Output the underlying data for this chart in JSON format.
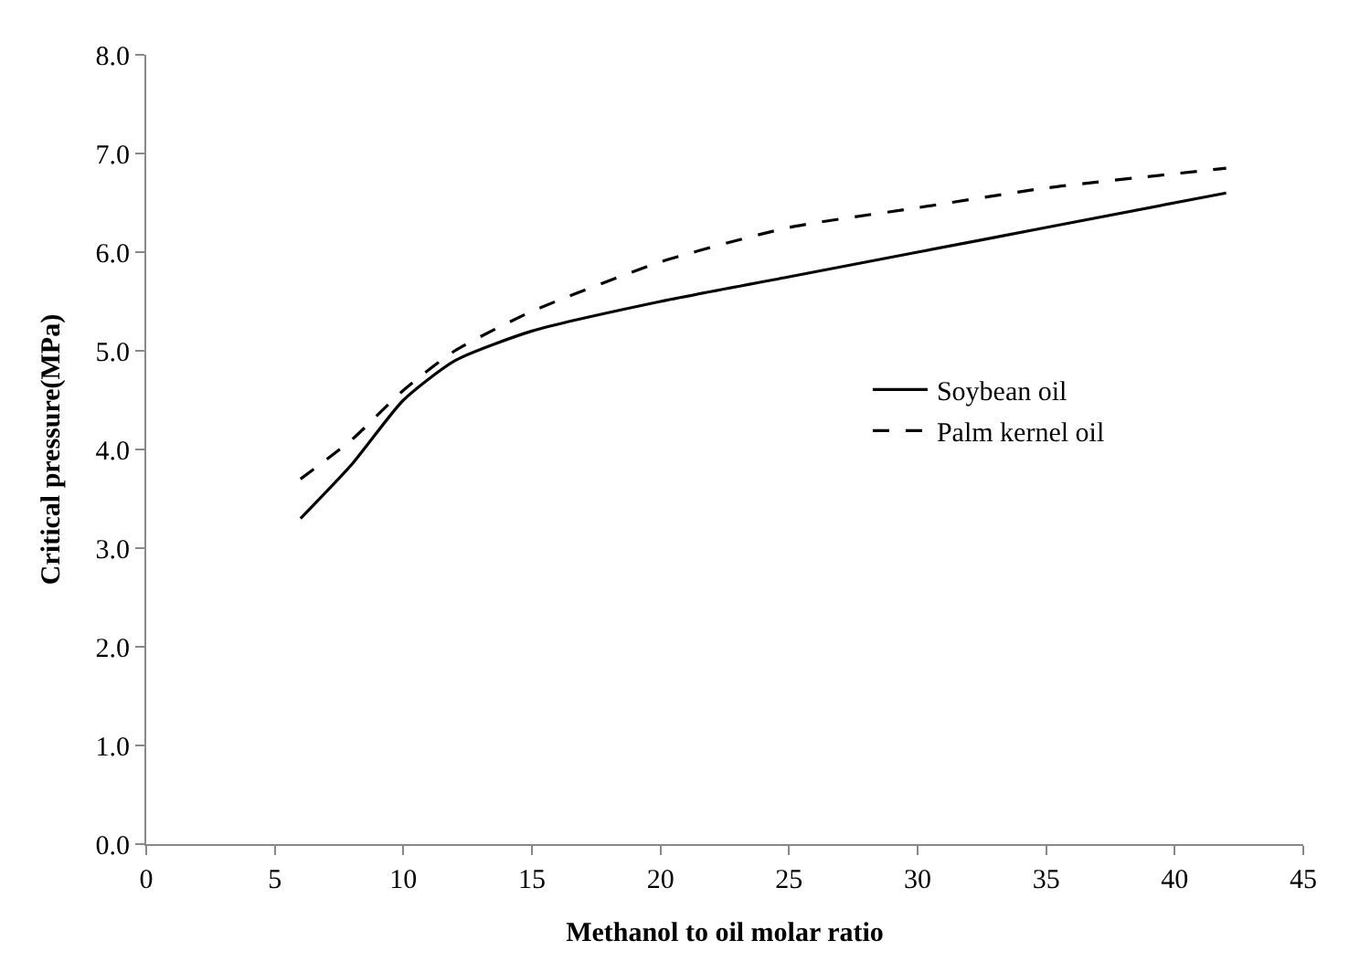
{
  "chart_data": {
    "type": "line",
    "xlabel": "Methanol to oil molar ratio",
    "ylabel": "Critical pressure(MPa)",
    "xlim": [
      0,
      45
    ],
    "xticks": [
      0,
      5,
      10,
      15,
      20,
      25,
      30,
      35,
      40,
      45
    ],
    "ylim": [
      0,
      8
    ],
    "yticks": [
      {
        "value": 0,
        "label": "0.0"
      },
      {
        "value": 1,
        "label": "1.0"
      },
      {
        "value": 2,
        "label": "2.0"
      },
      {
        "value": 3,
        "label": "3.0"
      },
      {
        "value": 4,
        "label": "4.0"
      },
      {
        "value": 5,
        "label": "5.0"
      },
      {
        "value": 6,
        "label": "6.0"
      },
      {
        "value": 7,
        "label": "7.0"
      },
      {
        "value": 8,
        "label": "8.0"
      }
    ],
    "grid": false,
    "legend": "right",
    "marker": "none",
    "series": [
      {
        "name": "Soybean oil",
        "color": "#000000",
        "line_style": "solid",
        "x": [
          6,
          8,
          10,
          12,
          15,
          20,
          25,
          30,
          35,
          42
        ],
        "values": [
          3.3,
          3.85,
          4.5,
          4.9,
          5.2,
          5.5,
          5.75,
          6.0,
          6.25,
          6.6
        ]
      },
      {
        "name": "Palm kernel oil",
        "color": "#000000",
        "line_style": "dashed",
        "x": [
          6,
          8,
          10,
          12,
          15,
          20,
          25,
          30,
          35,
          42
        ],
        "values": [
          3.7,
          4.1,
          4.6,
          5.0,
          5.4,
          5.9,
          6.25,
          6.45,
          6.65,
          6.85
        ]
      }
    ]
  }
}
